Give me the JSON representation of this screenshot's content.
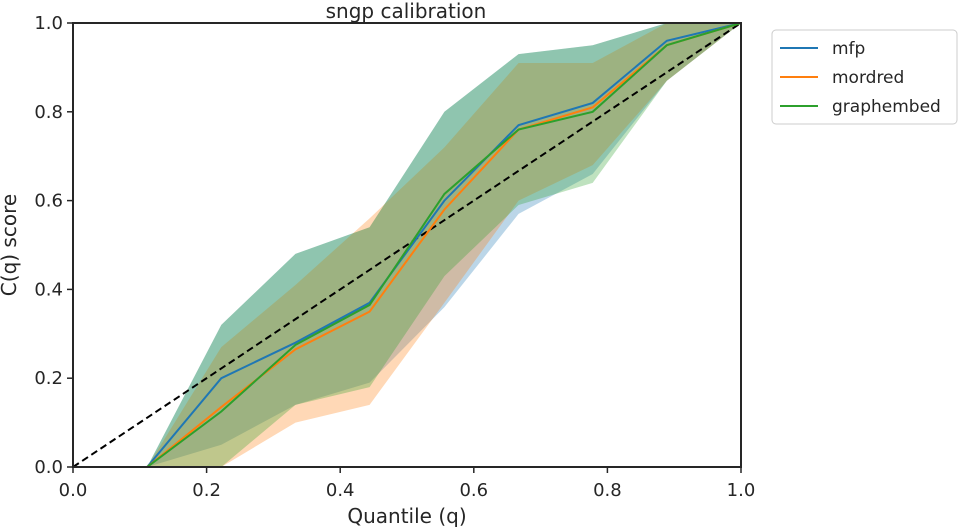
{
  "chart_data": {
    "type": "line",
    "title": "sngp calibration",
    "xlabel": "Quantile (q)",
    "ylabel": "C(q) score",
    "xlim": [
      0.0,
      1.0
    ],
    "ylim": [
      0.0,
      1.0
    ],
    "xticks": [
      "0.0",
      "0.2",
      "0.4",
      "0.6",
      "0.8",
      "1.0"
    ],
    "yticks": [
      "0.0",
      "0.2",
      "0.4",
      "0.6",
      "0.8",
      "1.0"
    ],
    "grid": false,
    "legend_position": "outside-top-right",
    "x": [
      0.0,
      0.111,
      0.222,
      0.333,
      0.444,
      0.556,
      0.667,
      0.778,
      0.889,
      1.0
    ],
    "reference_line": {
      "style": "dashed",
      "color": "#000000",
      "from": [
        0,
        0
      ],
      "to": [
        1,
        1
      ]
    },
    "series": [
      {
        "name": "mfp",
        "color": "#1f77b4",
        "values": [
          0.0,
          0.0,
          0.2,
          0.28,
          0.37,
          0.6,
          0.77,
          0.82,
          0.96,
          1.0
        ],
        "lower": [
          0.0,
          0.0,
          0.05,
          0.14,
          0.19,
          0.36,
          0.57,
          0.66,
          0.87,
          1.0
        ],
        "upper": [
          0.0,
          0.0,
          0.32,
          0.48,
          0.54,
          0.8,
          0.93,
          0.95,
          1.0,
          1.0
        ]
      },
      {
        "name": "mordred",
        "color": "#ff7f0e",
        "values": [
          0.0,
          0.0,
          0.135,
          0.265,
          0.35,
          0.58,
          0.76,
          0.81,
          0.95,
          1.0
        ],
        "lower": [
          0.0,
          0.0,
          0.0,
          0.1,
          0.14,
          0.37,
          0.6,
          0.68,
          0.87,
          1.0
        ],
        "upper": [
          0.0,
          0.0,
          0.27,
          0.41,
          0.56,
          0.72,
          0.91,
          0.91,
          1.0,
          1.0
        ]
      },
      {
        "name": "graphembed",
        "color": "#2ca02c",
        "values": [
          0.0,
          0.0,
          0.125,
          0.275,
          0.365,
          0.615,
          0.76,
          0.8,
          0.95,
          1.0
        ],
        "lower": [
          0.0,
          0.0,
          0.0,
          0.14,
          0.18,
          0.43,
          0.59,
          0.64,
          0.87,
          1.0
        ],
        "upper": [
          0.0,
          0.0,
          0.32,
          0.48,
          0.54,
          0.8,
          0.93,
          0.95,
          1.0,
          1.0
        ]
      }
    ]
  }
}
